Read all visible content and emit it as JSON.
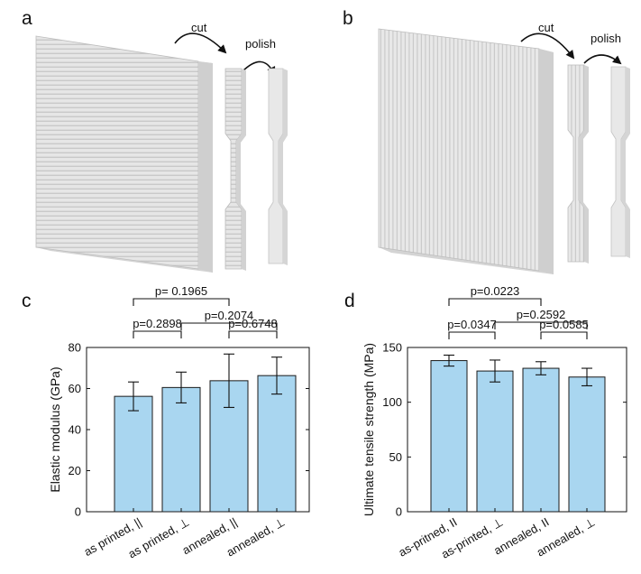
{
  "panels": {
    "a": {
      "letter": "a",
      "cut_label": "cut",
      "polish_label": "polish"
    },
    "b": {
      "letter": "b",
      "cut_label": "cut",
      "polish_label": "polish"
    },
    "c": {
      "letter": "c"
    },
    "d": {
      "letter": "d"
    }
  },
  "colors": {
    "bar_fill": "#a9d6f0",
    "bar_stroke": "#1a1a1a",
    "specimen": "#e4e4e4",
    "specimen_lines": "#c4c4c4"
  },
  "chart_data": [
    {
      "type": "bar",
      "panel": "c",
      "ylabel": "Elastic modulus (GPa)",
      "ylim": [
        0,
        80
      ],
      "yticks": [
        0,
        20,
        40,
        60,
        80
      ],
      "categories": [
        "as printed, ||",
        "as printed, ⊥",
        "annealed, ||",
        "annealed, ⊥"
      ],
      "values": [
        56.2,
        60.5,
        63.8,
        66.3
      ],
      "errors": [
        7.0,
        7.5,
        13.0,
        9.0
      ],
      "comparisons": [
        {
          "from": 0,
          "to": 1,
          "label": "p=0.2898"
        },
        {
          "from": 2,
          "to": 3,
          "label": "p=0.6748"
        },
        {
          "from": 1,
          "to": 3,
          "label": "p=0.2074"
        },
        {
          "from": 0,
          "to": 2,
          "label": "p= 0.1965"
        }
      ]
    },
    {
      "type": "bar",
      "panel": "d",
      "ylabel": "Ultimate tensile strength (MPa)",
      "ylim": [
        0,
        150
      ],
      "yticks": [
        0,
        50,
        100,
        150
      ],
      "categories": [
        "as-pritned, II",
        "as-printed, ⊥",
        "annealed, II",
        "annealed, ⊥"
      ],
      "values": [
        138,
        128.5,
        131,
        123
      ],
      "errors": [
        5,
        10,
        6,
        8
      ],
      "comparisons": [
        {
          "from": 0,
          "to": 1,
          "label": "p=0.0347"
        },
        {
          "from": 2,
          "to": 3,
          "label": "p=0.0585"
        },
        {
          "from": 1,
          "to": 3,
          "label": "p=0.2592"
        },
        {
          "from": 0,
          "to": 2,
          "label": "p=0.0223"
        }
      ]
    }
  ]
}
